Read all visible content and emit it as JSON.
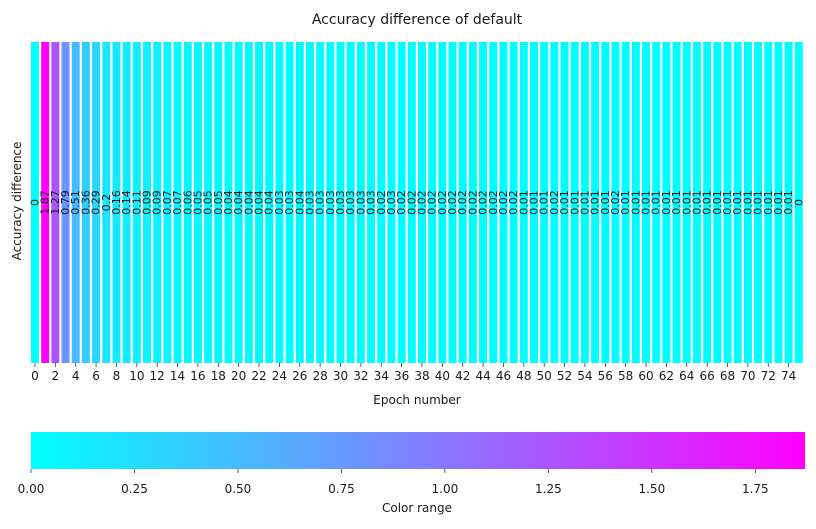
{
  "chart_data": {
    "type": "heatmap",
    "title": "Accuracy difference of  default",
    "xlabel": "Epoch number",
    "ylabel": "Accuracy difference",
    "x": [
      0,
      1,
      2,
      3,
      4,
      5,
      6,
      7,
      8,
      9,
      10,
      11,
      12,
      13,
      14,
      15,
      16,
      17,
      18,
      19,
      20,
      21,
      22,
      23,
      24,
      25,
      26,
      27,
      28,
      29,
      30,
      31,
      32,
      33,
      34,
      35,
      36,
      37,
      38,
      39,
      40,
      41,
      42,
      43,
      44,
      45,
      46,
      47,
      48,
      49,
      50,
      51,
      52,
      53,
      54,
      55,
      56,
      57,
      58,
      59,
      60,
      61,
      62,
      63,
      64,
      65,
      66,
      67,
      68,
      69,
      70,
      71,
      72,
      73,
      74,
      75
    ],
    "x_tick_labels": [
      "0",
      "2",
      "4",
      "6",
      "8",
      "10",
      "12",
      "14",
      "16",
      "18",
      "20",
      "22",
      "24",
      "26",
      "28",
      "30",
      "32",
      "34",
      "36",
      "38",
      "40",
      "42",
      "44",
      "46",
      "48",
      "50",
      "52",
      "54",
      "56",
      "58",
      "60",
      "62",
      "64",
      "66",
      "68",
      "70",
      "72",
      "74"
    ],
    "values": [
      0,
      1.87,
      1.27,
      0.79,
      0.51,
      0.36,
      0.29,
      0.2,
      0.16,
      0.14,
      0.11,
      0.09,
      0.09,
      0.07,
      0.07,
      0.06,
      0.05,
      0.05,
      0.05,
      0.04,
      0.04,
      0.04,
      0.04,
      0.04,
      0.03,
      0.03,
      0.04,
      0.03,
      0.03,
      0.03,
      0.03,
      0.03,
      0.03,
      0.03,
      0.02,
      0.03,
      0.02,
      0.02,
      0.02,
      0.02,
      0.02,
      0.02,
      0.02,
      0.02,
      0.02,
      0.02,
      0.02,
      0.02,
      0.01,
      0.01,
      0.01,
      0.02,
      0.01,
      0.01,
      0.01,
      0.01,
      0.01,
      0.02,
      0.01,
      0.01,
      0.01,
      0.01,
      0.01,
      0.01,
      0.01,
      0.01,
      0.01,
      0.01,
      0.01,
      0.01,
      0.01,
      0.01,
      0.01,
      0.01,
      0.01,
      0
    ],
    "value_labels": [
      "0",
      "1.87",
      "1.27",
      "0.79",
      "0.51",
      "0.36",
      "0.29",
      "0.2",
      "0.16",
      "0.14",
      "0.11",
      "0.09",
      "0.09",
      "0.07",
      "0.07",
      "0.06",
      "0.05",
      "0.05",
      "0.05",
      "0.04",
      "0.04",
      "0.04",
      "0.04",
      "0.04",
      "0.03",
      "0.03",
      "0.04",
      "0.03",
      "0.03",
      "0.03",
      "0.03",
      "0.03",
      "0.03",
      "0.03",
      "0.02",
      "0.03",
      "0.02",
      "0.02",
      "0.02",
      "0.02",
      "0.02",
      "0.02",
      "0.02",
      "0.02",
      "0.02",
      "0.02",
      "0.02",
      "0.02",
      "0.01",
      "0.01",
      "0.01",
      "0.02",
      "0.01",
      "0.01",
      "0.01",
      "0.01",
      "0.01",
      "0.02",
      "0.01",
      "0.01",
      "0.01",
      "0.01",
      "0.01",
      "0.01",
      "0.01",
      "0.01",
      "0.01",
      "0.01",
      "0.01",
      "0.01",
      "0.01",
      "0.01",
      "0.01",
      "0.01",
      "0.01",
      "0"
    ],
    "colormap": "cool",
    "color_low": "#00ffff",
    "color_high": "#ff00ff",
    "cell_separator_color": "#ffffff",
    "colorbar": {
      "label": "Color range",
      "range": [
        0,
        1.87
      ],
      "tick_values": [
        0,
        0.25,
        0.5,
        0.75,
        1.0,
        1.25,
        1.5,
        1.75
      ],
      "tick_labels": [
        "0.00",
        "0.25",
        "0.50",
        "0.75",
        "1.00",
        "1.25",
        "1.50",
        "1.75"
      ],
      "placement": "bottom"
    }
  }
}
